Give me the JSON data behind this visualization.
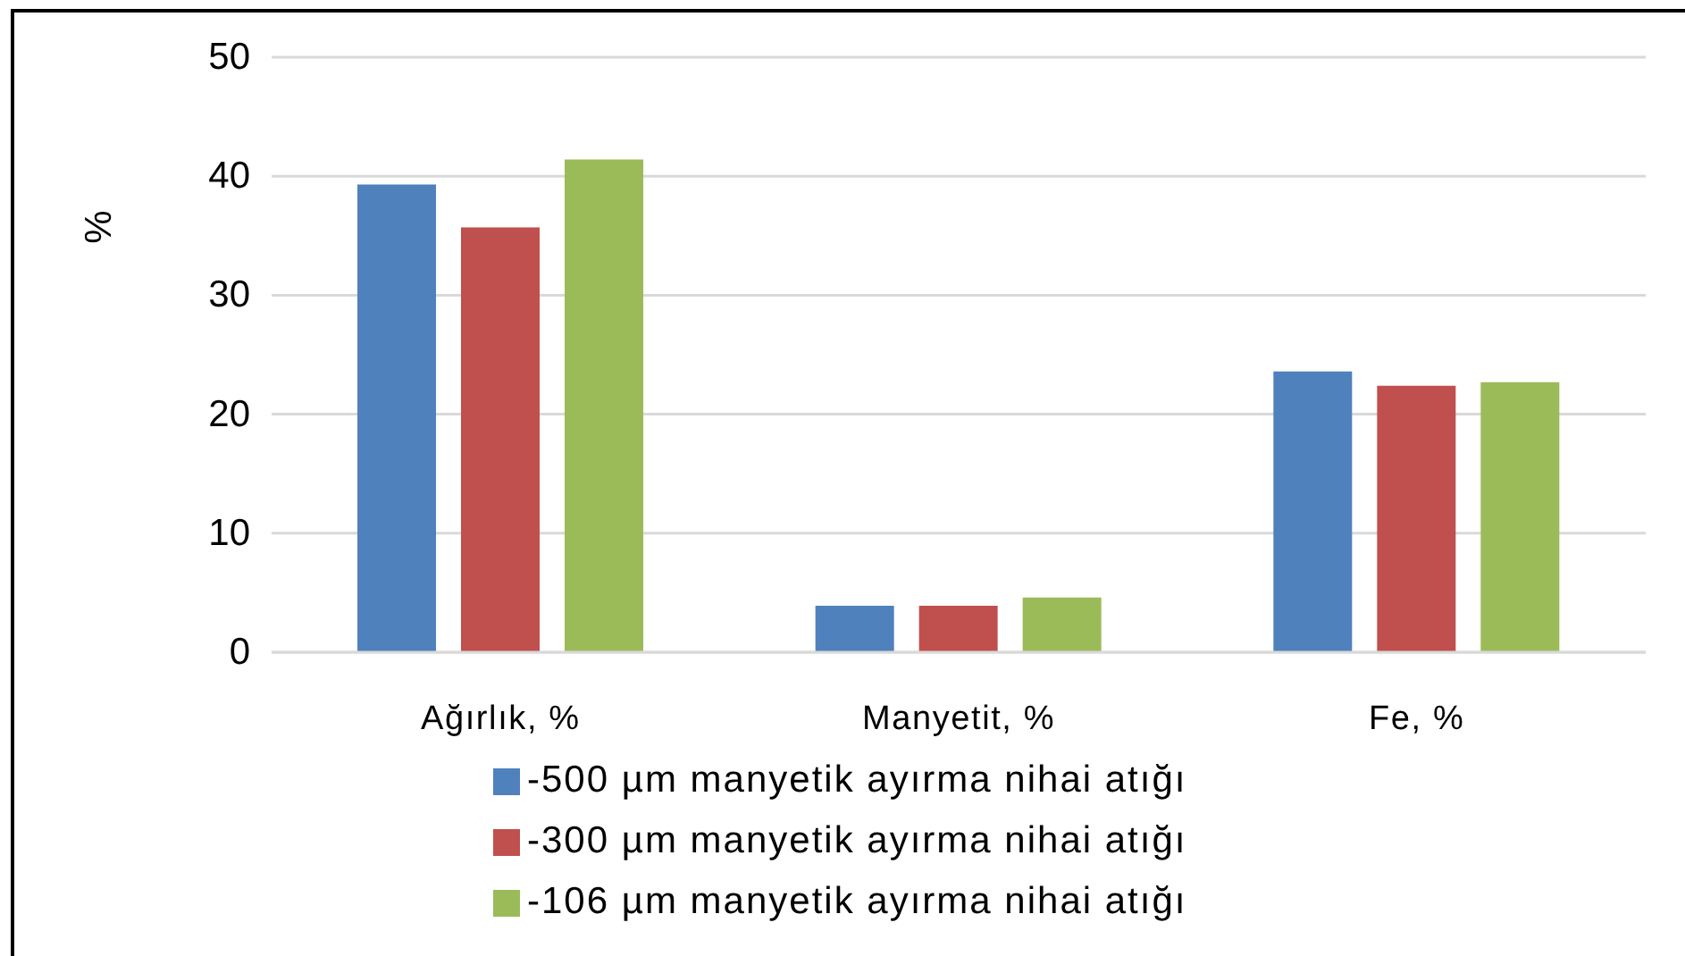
{
  "chart_data": {
    "type": "bar",
    "ylabel": "%",
    "categories": [
      "Ağırlık, %",
      "Manyetit, %",
      "Fe, %"
    ],
    "series": [
      {
        "name": "-500 µm manyetik ayırma nihai atığı",
        "color": "#4f81bd",
        "values": [
          39.3,
          3.9,
          23.6
        ]
      },
      {
        "name": "-300 µm manyetik ayırma nihai atığı",
        "color": "#c0504d",
        "values": [
          35.7,
          3.9,
          22.4
        ]
      },
      {
        "name": "-106 µm manyetik ayırma nihai atığı",
        "color": "#9bbb59",
        "values": [
          41.4,
          4.6,
          22.7
        ]
      }
    ],
    "ylim": [
      0,
      50
    ],
    "yticks": [
      0,
      10,
      20,
      30,
      40,
      50
    ],
    "grid": "y",
    "legend": "bottom"
  }
}
